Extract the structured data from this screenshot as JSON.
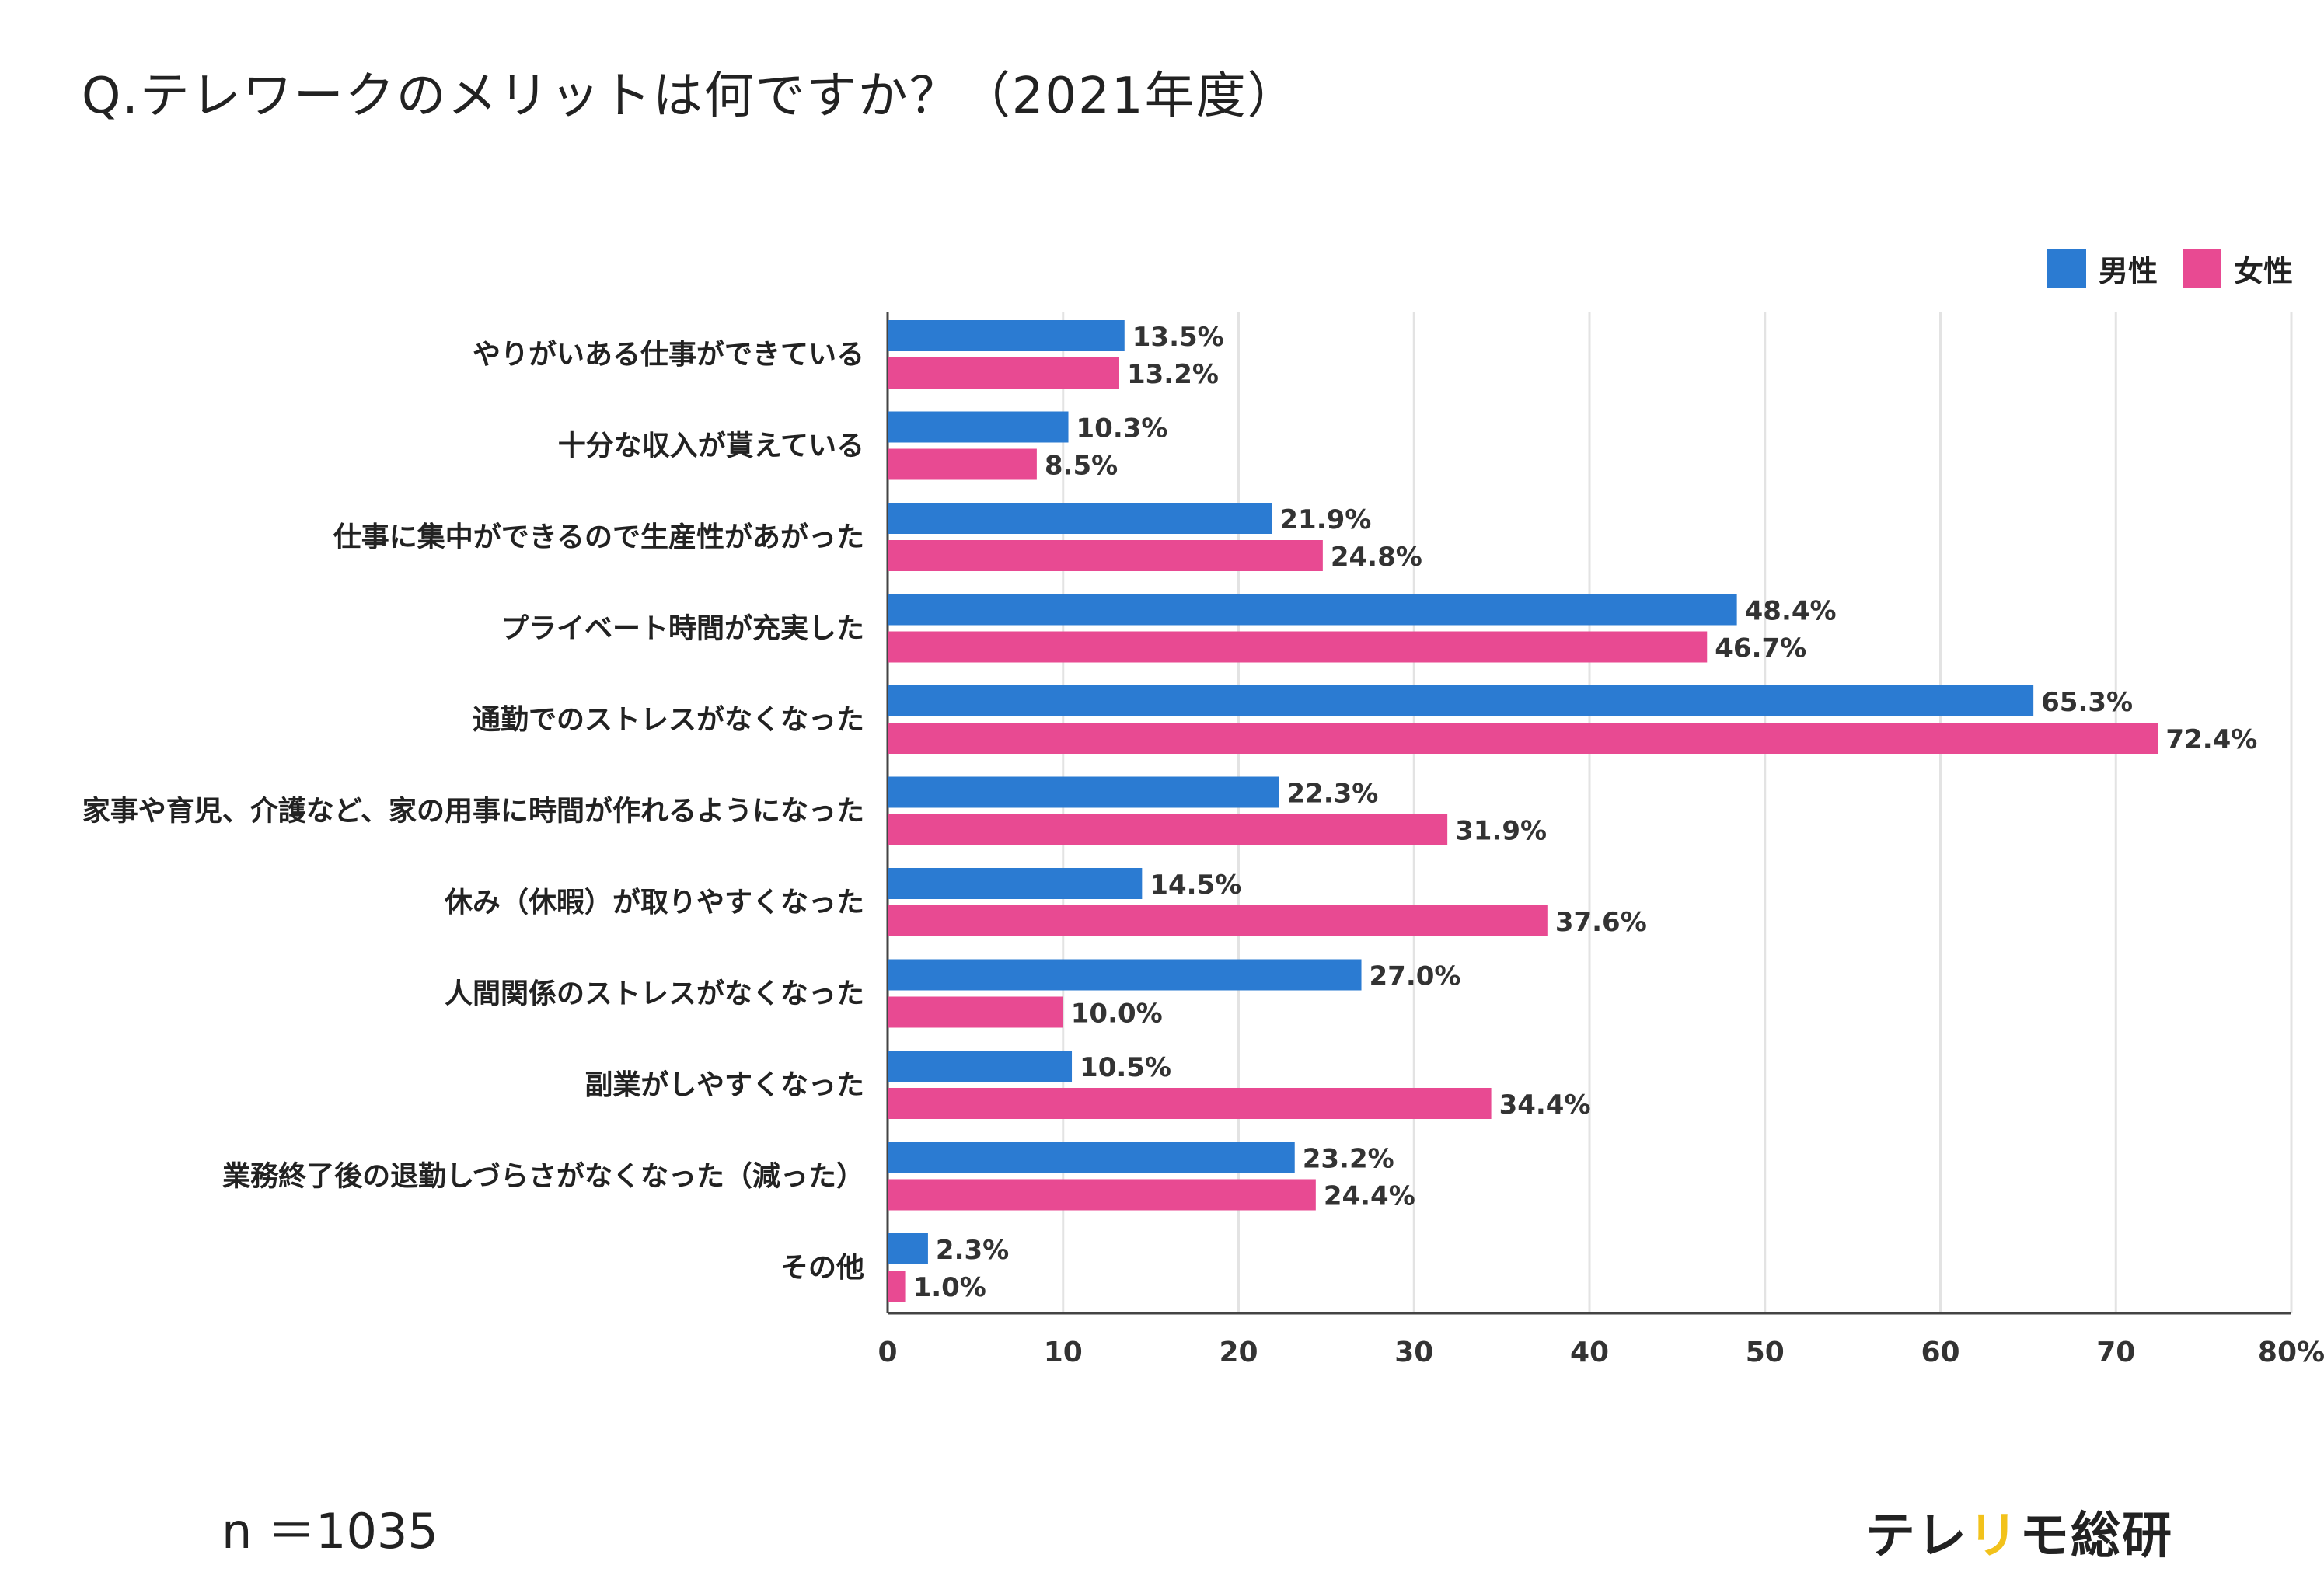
{
  "header": {
    "title": "Q.テレワークのメリットは何ですか？（2021年度）"
  },
  "footer": {
    "sample_size": "n ＝1035",
    "brand_part1": "テレ",
    "brand_part2": "リ",
    "brand_part3": "モ総研"
  },
  "colors": {
    "male": "#2b7bd2",
    "female": "#e84a92",
    "brand_accent": "#f2c21b"
  },
  "chart_data": {
    "type": "bar",
    "orientation": "horizontal",
    "title": "Q.テレワークのメリットは何ですか？（2021年度）",
    "xlabel": "",
    "ylabel": "",
    "xlim": [
      0,
      80
    ],
    "x_ticks": [
      "0",
      "10",
      "20",
      "30",
      "40",
      "50",
      "60",
      "70",
      "80%"
    ],
    "grid": true,
    "legend_position": "top-right",
    "categories": [
      "やりがいある仕事ができている",
      "十分な収入が貰えている",
      "仕事に集中ができるので生産性があがった",
      "プライベート時間が充実した",
      "通勤でのストレスがなくなった",
      "家事や育児、介護など、家の用事に時間が作れるようになった",
      "休み（休暇）が取りやすくなった",
      "人間関係のストレスがなくなった",
      "副業がしやすくなった",
      "業務終了後の退勤しづらさがなくなった（減った）",
      "その他"
    ],
    "series": [
      {
        "name": "男性",
        "values": [
          13.5,
          10.3,
          21.9,
          48.4,
          65.3,
          22.3,
          14.5,
          27.0,
          10.5,
          23.2,
          2.3
        ],
        "labels": [
          "13.5%",
          "10.3%",
          "21.9%",
          "48.4%",
          "65.3%",
          "22.3%",
          "14.5%",
          "27.0%",
          "10.5%",
          "23.2%",
          "2.3%"
        ]
      },
      {
        "name": "女性",
        "values": [
          13.2,
          8.5,
          24.8,
          46.7,
          72.4,
          31.9,
          37.6,
          10.0,
          34.4,
          24.4,
          1.0
        ],
        "labels": [
          "13.2%",
          "8.5%",
          "24.8%",
          "46.7%",
          "72.4%",
          "31.9%",
          "37.6%",
          "10.0%",
          "34.4%",
          "24.4%",
          "1.0%"
        ]
      }
    ]
  }
}
